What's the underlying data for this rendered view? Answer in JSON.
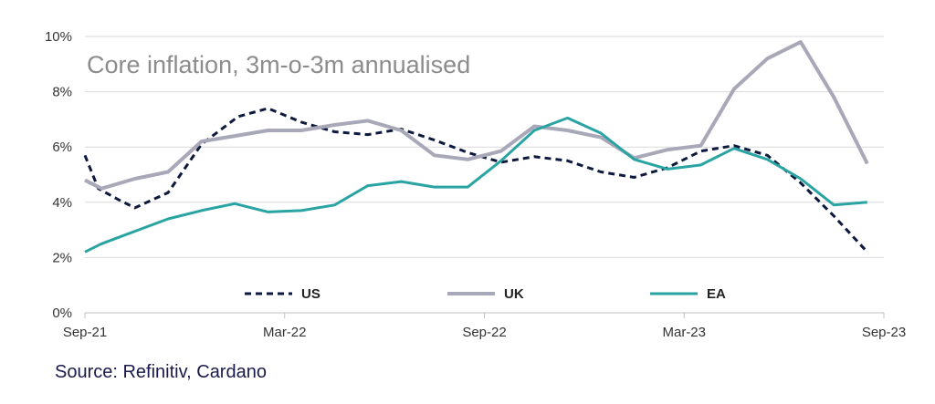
{
  "chart_data": {
    "type": "line",
    "title": "Core inflation, 3m-o-3m annualised",
    "source": "Source: Refinitiv, Cardano",
    "y_ticks": [
      "0%",
      "2%",
      "4%",
      "6%",
      "8%",
      "10%"
    ],
    "ylim": [
      0,
      10
    ],
    "x_tick_labels": [
      "Sep-21",
      "Mar-22",
      "Sep-22",
      "Mar-23",
      "Sep-23"
    ],
    "x_tick_index": [
      0,
      6,
      12,
      18,
      24
    ],
    "x_range": [
      0,
      24
    ],
    "grid": true,
    "legend_position": "bottom",
    "series": [
      {
        "name": "US",
        "color": "#0d1a3d",
        "style": "dashed",
        "x": [
          0,
          0.4,
          1,
          1.5,
          2.5,
          3.5,
          4.6,
          5.5,
          6.5,
          7.5,
          8.5,
          9.5,
          10.5,
          11.5,
          12.5,
          13.5,
          14.5,
          15.5,
          16.5,
          17.5,
          18.5,
          19.5,
          20.5,
          21.5,
          22.5,
          23.5
        ],
        "values": [
          5.7,
          4.5,
          4.1,
          3.8,
          4.35,
          6.1,
          7.1,
          7.4,
          6.9,
          6.55,
          6.45,
          6.65,
          6.25,
          5.8,
          5.45,
          5.65,
          5.5,
          5.1,
          4.9,
          5.25,
          5.85,
          6.05,
          5.7,
          4.7,
          3.5,
          2.2
        ]
      },
      {
        "name": "UK",
        "color": "#a8a8b8",
        "style": "solid",
        "x": [
          0,
          0.5,
          1.5,
          2.5,
          3.5,
          4.5,
          5.5,
          6.5,
          7.5,
          8.5,
          9.5,
          10.5,
          11.5,
          12.5,
          13.5,
          14.5,
          15.5,
          16.5,
          17.5,
          18.5,
          19.5,
          20.5,
          21.5,
          22.5,
          23.5
        ],
        "values": [
          4.8,
          4.5,
          4.85,
          5.1,
          6.2,
          6.4,
          6.6,
          6.6,
          6.8,
          6.95,
          6.6,
          5.7,
          5.55,
          5.85,
          6.75,
          6.6,
          6.35,
          5.6,
          5.9,
          6.05,
          8.1,
          9.2,
          9.8,
          7.8,
          5.4
        ]
      },
      {
        "name": "EA",
        "color": "#2aa3a3",
        "style": "solid",
        "x": [
          0,
          0.5,
          1.5,
          2.5,
          3.5,
          4.5,
          5.5,
          6.5,
          7.5,
          8.5,
          9.5,
          10.5,
          11.5,
          12.5,
          13.5,
          14.5,
          15.5,
          16.5,
          17.5,
          18.5,
          19.5,
          20.5,
          21.5,
          22.5,
          23.5
        ],
        "values": [
          2.2,
          2.5,
          2.95,
          3.4,
          3.7,
          3.95,
          3.65,
          3.7,
          3.9,
          4.6,
          4.75,
          4.55,
          4.55,
          5.5,
          6.6,
          7.05,
          6.5,
          5.55,
          5.2,
          5.35,
          5.95,
          5.55,
          4.85,
          3.9,
          4.0
        ]
      }
    ]
  }
}
